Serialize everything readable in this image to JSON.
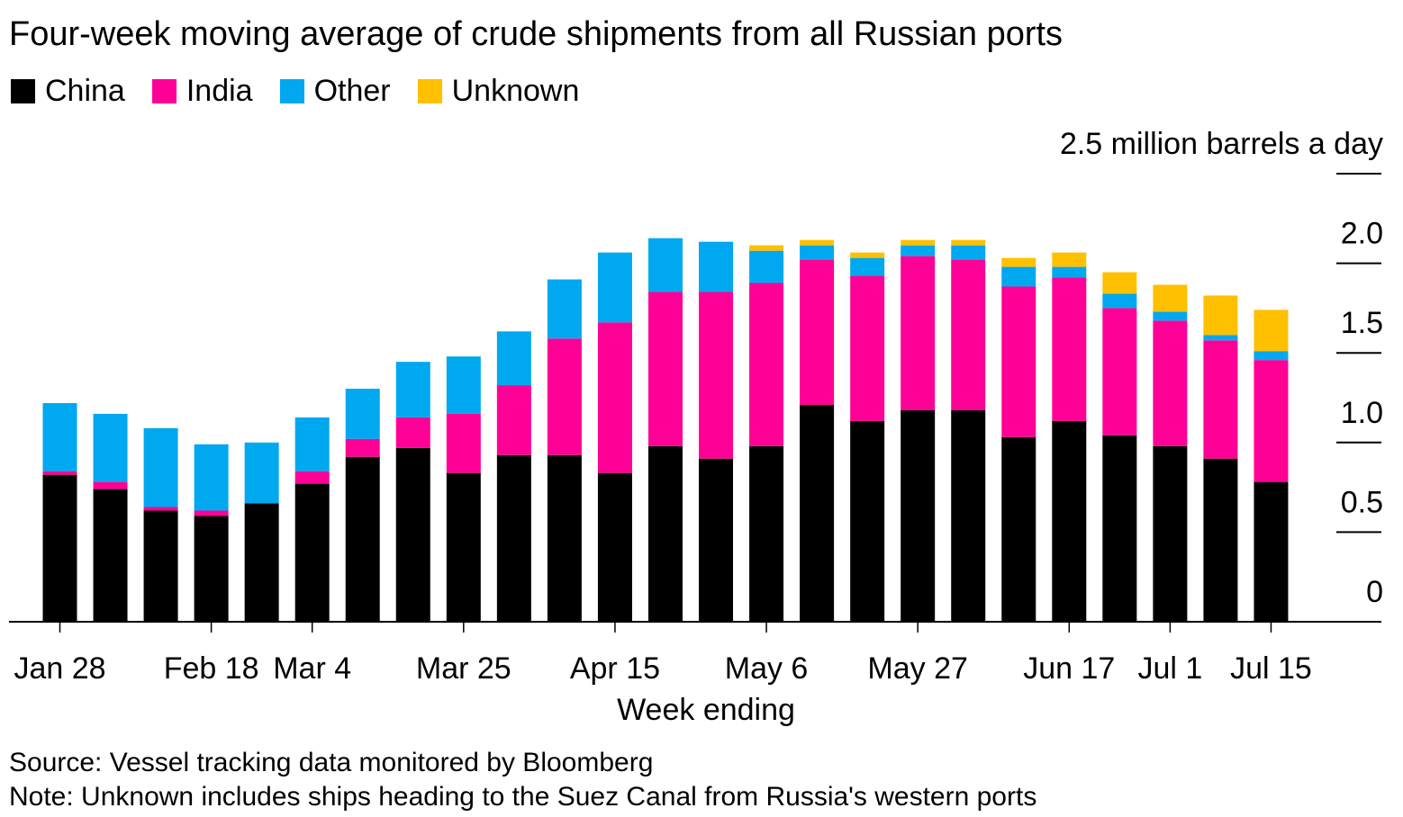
{
  "title": "Four-week moving average of crude shipments from all Russian ports",
  "legend": [
    {
      "label": "China",
      "color": "#000000"
    },
    {
      "label": "India",
      "color": "#ff0096"
    },
    {
      "label": "Other",
      "color": "#00a8f0"
    },
    {
      "label": "Unknown",
      "color": "#ffc000"
    }
  ],
  "chart_data": {
    "type": "bar",
    "stacked": true,
    "title": "Four-week moving average of crude shipments from all Russian ports",
    "xlabel": "Week ending",
    "ylabel": "million barrels a day",
    "y_unit_label": "2.5 million barrels a day",
    "ylim": [
      0,
      2.5
    ],
    "y_ticks": [
      0,
      0.5,
      1.0,
      1.5,
      2.0,
      2.5
    ],
    "y_tick_labels": [
      "0",
      "0.5",
      "1.0",
      "1.5",
      "2.0",
      "2.5 million barrels a day"
    ],
    "grid": false,
    "legend_position": "top-left",
    "x_tick_labels": [
      {
        "label": "Jan 28",
        "index": 0
      },
      {
        "label": "Feb 18",
        "index": 3
      },
      {
        "label": "Mar 4",
        "index": 5
      },
      {
        "label": "Mar 25",
        "index": 8
      },
      {
        "label": "Apr 15",
        "index": 11
      },
      {
        "label": "May 6",
        "index": 14
      },
      {
        "label": "May 27",
        "index": 17
      },
      {
        "label": "Jun 17",
        "index": 20
      },
      {
        "label": "Jul 1",
        "index": 22
      },
      {
        "label": "Jul 15",
        "index": 24
      }
    ],
    "categories": [
      "Jan 28",
      "Feb 4",
      "Feb 11",
      "Feb 18",
      "Feb 25",
      "Mar 4",
      "Mar 11",
      "Mar 18",
      "Mar 25",
      "Apr 1",
      "Apr 8",
      "Apr 15",
      "Apr 22",
      "Apr 29",
      "May 6",
      "May 13",
      "May 20",
      "May 27",
      "Jun 3",
      "Jun 10",
      "Jun 17",
      "Jun 24",
      "Jul 1",
      "Jul 8",
      "Jul 15"
    ],
    "series": [
      {
        "name": "China",
        "color": "#000000",
        "values": [
          0.82,
          0.74,
          0.62,
          0.59,
          0.66,
          0.77,
          0.92,
          0.97,
          0.83,
          0.93,
          0.93,
          0.83,
          0.98,
          0.91,
          0.98,
          1.21,
          1.12,
          1.18,
          1.18,
          1.03,
          1.12,
          1.04,
          0.98,
          0.91,
          0.78
        ]
      },
      {
        "name": "India",
        "color": "#ff0096",
        "values": [
          0.02,
          0.04,
          0.02,
          0.03,
          0.0,
          0.07,
          0.1,
          0.17,
          0.33,
          0.39,
          0.65,
          0.84,
          0.86,
          0.93,
          0.91,
          0.81,
          0.81,
          0.86,
          0.84,
          0.84,
          0.8,
          0.71,
          0.7,
          0.66,
          0.68
        ]
      },
      {
        "name": "Other",
        "color": "#00a8f0",
        "values": [
          0.38,
          0.38,
          0.44,
          0.37,
          0.34,
          0.3,
          0.28,
          0.31,
          0.32,
          0.3,
          0.33,
          0.39,
          0.3,
          0.28,
          0.18,
          0.08,
          0.1,
          0.06,
          0.08,
          0.11,
          0.06,
          0.08,
          0.05,
          0.03,
          0.05
        ]
      },
      {
        "name": "Unknown",
        "color": "#ffc000",
        "values": [
          0,
          0,
          0,
          0,
          0,
          0,
          0,
          0,
          0,
          0,
          0,
          0,
          0,
          0,
          0.03,
          0.03,
          0.03,
          0.03,
          0.03,
          0.05,
          0.08,
          0.12,
          0.15,
          0.22,
          0.23
        ]
      }
    ]
  },
  "footer": {
    "source": "Source: Vessel tracking data monitored by Bloomberg",
    "note": "Note: Unknown includes ships heading to the Suez Canal from Russia's western ports"
  }
}
